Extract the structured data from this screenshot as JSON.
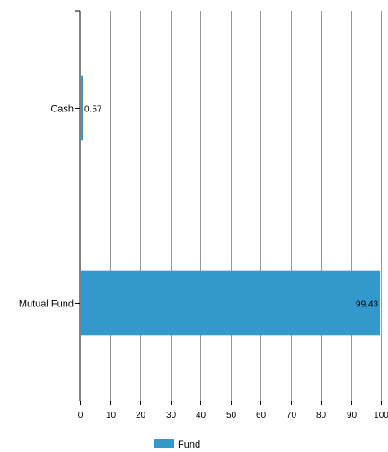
{
  "chart_data": {
    "type": "bar",
    "orientation": "horizontal",
    "categories": [
      "Cash",
      "Mutual Fund"
    ],
    "series": [
      {
        "name": "Fund",
        "values": [
          0.57,
          99.43
        ],
        "color": "#3399cc"
      }
    ],
    "data_labels": [
      "0.57",
      "99.43"
    ],
    "xlim": [
      0,
      100
    ],
    "xticks": [
      0,
      10,
      20,
      30,
      40,
      50,
      60,
      70,
      80,
      90,
      100
    ],
    "xtick_labels": [
      "0",
      "10",
      "20",
      "30",
      "40",
      "50",
      "60",
      "70",
      "80",
      "90",
      "100"
    ],
    "title": "",
    "xlabel": "",
    "ylabel": "",
    "grid": "vertical",
    "legend_position": "bottom"
  }
}
